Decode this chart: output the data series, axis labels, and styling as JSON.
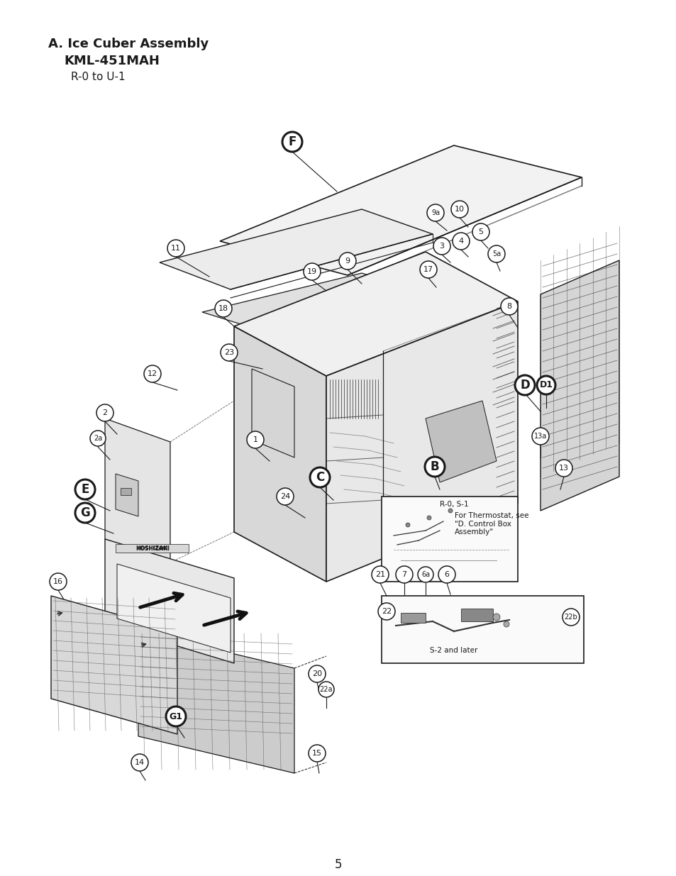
{
  "title_line1": "A. Ice Cuber Assembly",
  "title_line2": "KML-451MAH",
  "title_line3": "R-0 to U-1",
  "page_number": "5",
  "background_color": "#ffffff",
  "text_color": "#1a1a1a",
  "line_color": "#333333",
  "fig_width": 9.54,
  "fig_height": 12.35,
  "dpi": 100,
  "note_text": "For Thermostat, see\n\"D. Control Box\nAssembly\"",
  "note_text2": "R-0, S-1",
  "note_text3": "S-2 and later",
  "hoshizaki_text": "HOSHIZAKI"
}
